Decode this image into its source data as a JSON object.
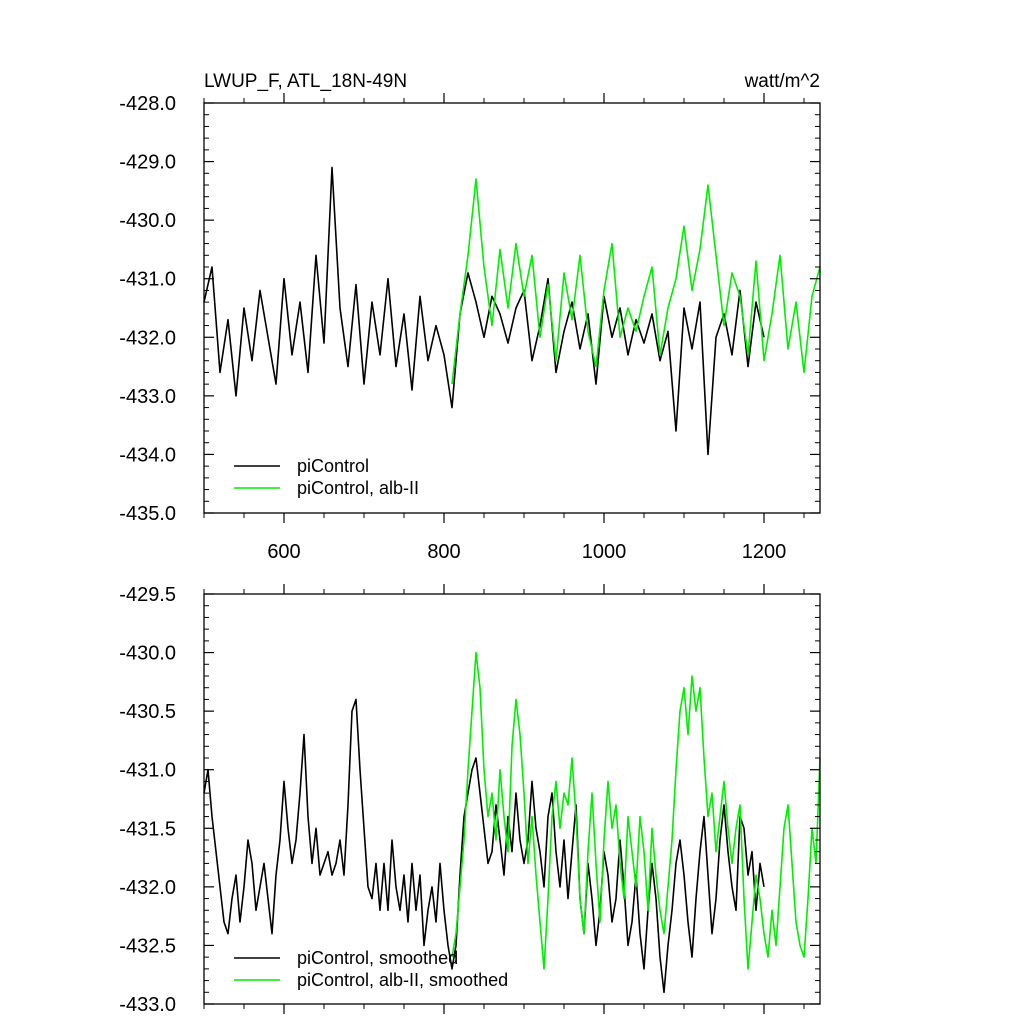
{
  "chart_data": [
    {
      "type": "line",
      "title": "LWUP_F, ATL_18N-49N",
      "units": "watt/m^2",
      "xlabel": "",
      "ylabel": "",
      "xlim": [
        500,
        1270
      ],
      "ylim": [
        -435.0,
        -428.0
      ],
      "xticks": [
        600,
        800,
        1000,
        1200
      ],
      "xtick_labels": [
        "600",
        "800",
        "1000",
        "1200"
      ],
      "yticks": [
        -435.0,
        -434.0,
        -433.0,
        -432.0,
        -431.0,
        -430.0,
        -429.0,
        -428.0
      ],
      "ytick_labels": [
        "-435.0",
        "-434.0",
        "-433.0",
        "-432.0",
        "-431.0",
        "-430.0",
        "-429.0",
        "-428.0"
      ],
      "legend": {
        "location": "bottom-left",
        "entries": [
          "piControl",
          "piControl, alb-II"
        ]
      },
      "series": [
        {
          "name": "piControl",
          "color": "#000000",
          "x": [
            500,
            510,
            520,
            530,
            540,
            550,
            560,
            570,
            580,
            590,
            600,
            610,
            620,
            630,
            640,
            650,
            660,
            670,
            680,
            690,
            700,
            710,
            720,
            730,
            740,
            750,
            760,
            770,
            780,
            790,
            800,
            810,
            820,
            830,
            840,
            850,
            860,
            870,
            880,
            890,
            900,
            910,
            920,
            930,
            940,
            950,
            960,
            970,
            980,
            990,
            1000,
            1010,
            1020,
            1030,
            1040,
            1050,
            1060,
            1070,
            1080,
            1090,
            1100,
            1110,
            1120,
            1130,
            1140,
            1150,
            1160,
            1170,
            1180,
            1190,
            1200
          ],
          "values": [
            -431.4,
            -430.8,
            -432.6,
            -431.7,
            -433.0,
            -431.5,
            -432.4,
            -431.2,
            -432.0,
            -432.8,
            -431.0,
            -432.3,
            -431.4,
            -432.6,
            -430.6,
            -432.1,
            -429.1,
            -431.5,
            -432.5,
            -431.1,
            -432.8,
            -431.4,
            -432.3,
            -431.0,
            -432.5,
            -431.6,
            -432.9,
            -431.3,
            -432.4,
            -431.8,
            -432.3,
            -433.2,
            -431.6,
            -430.9,
            -431.4,
            -432.0,
            -431.3,
            -431.6,
            -432.1,
            -431.5,
            -431.2,
            -432.4,
            -431.8,
            -431.0,
            -432.6,
            -431.9,
            -431.4,
            -432.2,
            -431.6,
            -432.8,
            -431.3,
            -432.0,
            -431.5,
            -432.3,
            -431.7,
            -432.1,
            -431.6,
            -432.4,
            -431.9,
            -433.6,
            -431.5,
            -432.2,
            -431.4,
            -434.0,
            -432.0,
            -431.6,
            -432.3,
            -431.2,
            -432.5,
            -431.4,
            -432.0
          ]
        },
        {
          "name": "piControl, alb-II",
          "color": "#00ee00",
          "x": [
            810,
            820,
            830,
            840,
            850,
            860,
            870,
            880,
            890,
            900,
            910,
            920,
            930,
            940,
            950,
            960,
            970,
            980,
            990,
            1000,
            1010,
            1020,
            1030,
            1040,
            1050,
            1060,
            1070,
            1080,
            1090,
            1100,
            1110,
            1120,
            1130,
            1140,
            1150,
            1160,
            1170,
            1180,
            1190,
            1200,
            1210,
            1220,
            1230,
            1240,
            1250,
            1260,
            1270
          ],
          "values": [
            -432.8,
            -431.6,
            -430.6,
            -429.3,
            -430.8,
            -431.8,
            -430.5,
            -431.5,
            -430.4,
            -431.3,
            -430.6,
            -432.0,
            -431.1,
            -432.4,
            -430.9,
            -431.7,
            -430.6,
            -431.9,
            -432.5,
            -431.2,
            -430.4,
            -432.0,
            -431.5,
            -431.9,
            -431.3,
            -430.8,
            -432.3,
            -431.5,
            -431.0,
            -430.1,
            -431.2,
            -430.5,
            -429.4,
            -430.6,
            -431.8,
            -430.9,
            -431.3,
            -432.3,
            -430.7,
            -432.4,
            -431.6,
            -430.6,
            -432.2,
            -431.4,
            -432.6,
            -431.3,
            -430.8
          ]
        }
      ]
    },
    {
      "type": "line",
      "title": "",
      "xlabel": "",
      "ylabel": "",
      "xlim": [
        500,
        1270
      ],
      "ylim": [
        -433.0,
        -429.5
      ],
      "xticks": [
        600,
        800,
        1000,
        1200
      ],
      "yticks": [
        -433.0,
        -432.5,
        -432.0,
        -431.5,
        -431.0,
        -430.5,
        -430.0,
        -429.5
      ],
      "ytick_labels": [
        "-433.0",
        "-432.5",
        "-432.0",
        "-431.5",
        "-431.0",
        "-430.5",
        "-430.0",
        "-429.5"
      ],
      "legend": {
        "location": "bottom-left",
        "entries": [
          "piControl, smoothed",
          "piControl, alb-II, smoothed"
        ]
      },
      "series": [
        {
          "name": "piControl, smoothed",
          "color": "#000000",
          "x": [
            500,
            505,
            510,
            515,
            520,
            525,
            530,
            535,
            540,
            545,
            550,
            555,
            560,
            565,
            570,
            575,
            580,
            585,
            590,
            595,
            600,
            605,
            610,
            615,
            620,
            625,
            630,
            635,
            640,
            645,
            650,
            655,
            660,
            665,
            670,
            675,
            680,
            685,
            690,
            695,
            700,
            705,
            710,
            715,
            720,
            725,
            730,
            735,
            740,
            745,
            750,
            755,
            760,
            765,
            770,
            775,
            780,
            785,
            790,
            795,
            800,
            805,
            810,
            815,
            820,
            825,
            830,
            835,
            840,
            845,
            850,
            855,
            860,
            865,
            870,
            875,
            880,
            885,
            890,
            895,
            900,
            905,
            910,
            915,
            920,
            925,
            930,
            935,
            940,
            945,
            950,
            955,
            960,
            965,
            970,
            975,
            980,
            985,
            990,
            995,
            1000,
            1005,
            1010,
            1015,
            1020,
            1025,
            1030,
            1035,
            1040,
            1045,
            1050,
            1055,
            1060,
            1065,
            1070,
            1075,
            1080,
            1085,
            1090,
            1095,
            1100,
            1105,
            1110,
            1115,
            1120,
            1125,
            1130,
            1135,
            1140,
            1145,
            1150,
            1155,
            1160,
            1165,
            1170,
            1175,
            1180,
            1185,
            1190,
            1195,
            1200
          ],
          "values": [
            -431.2,
            -431.0,
            -431.4,
            -431.7,
            -432.0,
            -432.3,
            -432.4,
            -432.1,
            -431.9,
            -432.3,
            -432.0,
            -431.6,
            -431.8,
            -432.2,
            -432.0,
            -431.8,
            -432.1,
            -432.4,
            -431.9,
            -431.6,
            -431.1,
            -431.5,
            -431.8,
            -431.6,
            -431.2,
            -430.7,
            -431.4,
            -431.8,
            -431.5,
            -431.9,
            -431.8,
            -431.7,
            -431.9,
            -431.8,
            -431.6,
            -431.9,
            -431.3,
            -430.5,
            -430.4,
            -431.0,
            -431.5,
            -432.0,
            -432.1,
            -431.8,
            -432.2,
            -431.8,
            -432.2,
            -431.6,
            -432.0,
            -432.2,
            -431.9,
            -432.3,
            -431.8,
            -432.2,
            -431.9,
            -432.5,
            -432.2,
            -432.0,
            -432.3,
            -431.8,
            -432.2,
            -432.5,
            -432.7,
            -432.5,
            -431.9,
            -431.4,
            -431.2,
            -431.0,
            -430.9,
            -431.2,
            -431.5,
            -431.8,
            -431.7,
            -431.3,
            -431.6,
            -431.9,
            -431.4,
            -431.7,
            -431.2,
            -431.6,
            -431.8,
            -431.6,
            -431.1,
            -431.5,
            -431.7,
            -432.0,
            -431.4,
            -431.2,
            -431.7,
            -432.0,
            -431.6,
            -432.1,
            -431.7,
            -431.3,
            -432.1,
            -432.4,
            -431.8,
            -432.1,
            -432.5,
            -432.2,
            -431.7,
            -431.9,
            -432.3,
            -432.1,
            -431.6,
            -432.0,
            -432.5,
            -432.3,
            -431.9,
            -432.4,
            -432.7,
            -432.2,
            -431.8,
            -432.1,
            -432.6,
            -432.9,
            -432.5,
            -432.2,
            -431.8,
            -431.6,
            -431.9,
            -432.3,
            -432.6,
            -432.1,
            -431.7,
            -431.4,
            -431.9,
            -432.4,
            -432.1,
            -431.6,
            -431.3,
            -431.7,
            -432.0,
            -432.2,
            -431.4,
            -431.5,
            -431.9,
            -431.7,
            -432.2,
            -431.8,
            -432.0
          ]
        },
        {
          "name": "piControl, alb-II, smoothed",
          "color": "#00ee00",
          "x": [
            810,
            815,
            820,
            825,
            830,
            835,
            840,
            845,
            850,
            855,
            860,
            865,
            870,
            875,
            880,
            885,
            890,
            895,
            900,
            905,
            910,
            915,
            920,
            925,
            930,
            935,
            940,
            945,
            950,
            955,
            960,
            965,
            970,
            975,
            980,
            985,
            990,
            995,
            1000,
            1005,
            1010,
            1015,
            1020,
            1025,
            1030,
            1035,
            1040,
            1045,
            1050,
            1055,
            1060,
            1065,
            1070,
            1075,
            1080,
            1085,
            1090,
            1095,
            1100,
            1105,
            1110,
            1115,
            1120,
            1125,
            1130,
            1135,
            1140,
            1145,
            1150,
            1155,
            1160,
            1165,
            1170,
            1175,
            1180,
            1185,
            1190,
            1195,
            1200,
            1205,
            1210,
            1215,
            1220,
            1225,
            1230,
            1235,
            1240,
            1245,
            1250,
            1255,
            1260,
            1265,
            1270
          ],
          "values": [
            -432.6,
            -432.4,
            -432.0,
            -431.6,
            -431.0,
            -430.5,
            -430.0,
            -430.3,
            -431.0,
            -431.4,
            -431.2,
            -431.6,
            -431.0,
            -431.4,
            -431.7,
            -430.8,
            -430.4,
            -430.7,
            -431.2,
            -431.8,
            -431.4,
            -431.9,
            -432.3,
            -432.7,
            -432.1,
            -431.4,
            -431.1,
            -431.5,
            -431.2,
            -431.3,
            -430.9,
            -431.4,
            -432.1,
            -432.4,
            -431.7,
            -431.2,
            -431.8,
            -432.3,
            -431.6,
            -431.1,
            -431.5,
            -431.3,
            -431.8,
            -432.1,
            -431.4,
            -431.7,
            -432.0,
            -431.4,
            -431.7,
            -432.2,
            -431.5,
            -431.9,
            -432.2,
            -432.4,
            -432.0,
            -431.6,
            -431.0,
            -430.5,
            -430.3,
            -430.7,
            -430.2,
            -430.5,
            -430.3,
            -430.9,
            -431.4,
            -431.2,
            -431.7,
            -431.4,
            -431.1,
            -431.5,
            -431.8,
            -431.5,
            -431.3,
            -432.1,
            -432.7,
            -432.3,
            -431.9,
            -432.1,
            -432.4,
            -432.6,
            -432.2,
            -432.5,
            -432.0,
            -431.5,
            -431.3,
            -431.8,
            -432.3,
            -432.5,
            -432.6,
            -432.1,
            -431.5,
            -431.8,
            -430.9
          ]
        }
      ]
    }
  ]
}
